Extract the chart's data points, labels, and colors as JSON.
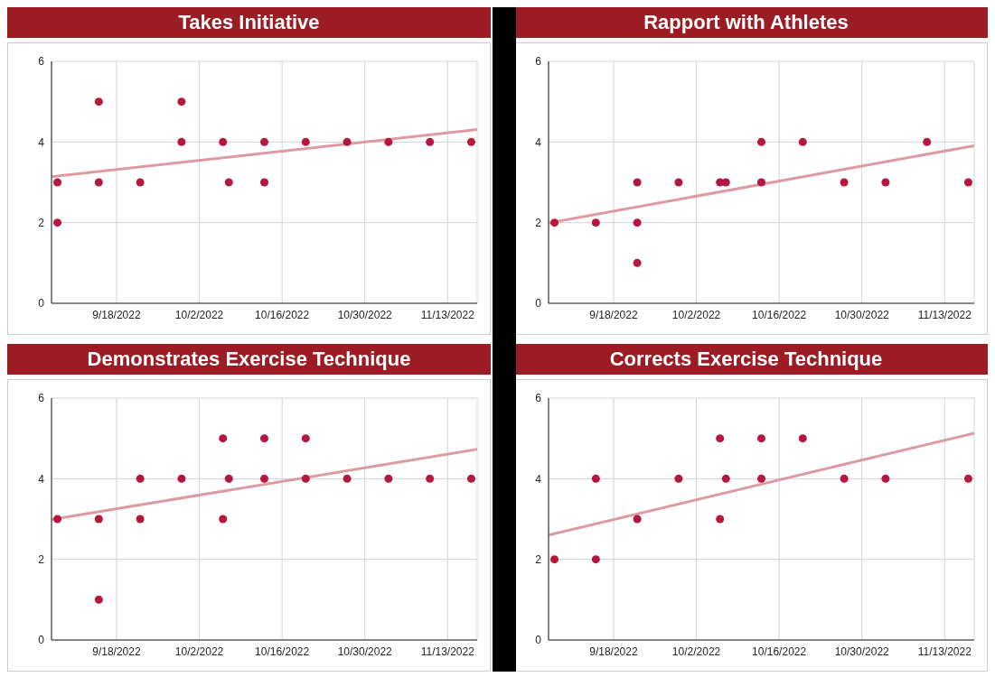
{
  "chart_data": [
    {
      "type": "scatter",
      "title": "Takes Initiative",
      "xlim": [
        "2022-09-07",
        "2022-11-18"
      ],
      "xticks": [
        {
          "value": "2022-09-18",
          "label": "9/18/2022"
        },
        {
          "value": "2022-10-02",
          "label": "10/2/2022"
        },
        {
          "value": "2022-10-16",
          "label": "10/16/2022"
        },
        {
          "value": "2022-10-30",
          "label": "10/30/2022"
        },
        {
          "value": "2022-11-13",
          "label": "11/13/2022"
        }
      ],
      "ylim": [
        0,
        6
      ],
      "yticks": [
        0,
        2,
        4,
        6
      ],
      "grid": true,
      "series": [
        {
          "color": "#b5173e",
          "marker": "circle",
          "x": [
            "2022-09-08",
            "2022-09-08",
            "2022-09-15",
            "2022-09-15",
            "2022-09-22",
            "2022-09-29",
            "2022-09-29",
            "2022-10-06",
            "2022-10-07",
            "2022-10-13",
            "2022-10-13",
            "2022-10-20",
            "2022-10-27",
            "2022-11-03",
            "2022-11-10",
            "2022-11-17"
          ],
          "values": [
            3,
            2,
            5,
            3,
            3,
            5,
            4,
            4,
            3,
            4,
            3,
            4,
            4,
            4,
            4,
            4
          ]
        },
        {
          "type": "line",
          "color": "#dc9aa2",
          "marker": "none",
          "x": [
            "2022-09-07",
            "2022-11-18"
          ],
          "values": [
            3.14,
            4.31
          ]
        }
      ]
    },
    {
      "type": "scatter",
      "title": "Rapport with Athletes",
      "xlim": [
        "2022-09-07",
        "2022-11-18"
      ],
      "xticks": [
        {
          "value": "2022-09-18",
          "label": "9/18/2022"
        },
        {
          "value": "2022-10-02",
          "label": "10/2/2022"
        },
        {
          "value": "2022-10-16",
          "label": "10/16/2022"
        },
        {
          "value": "2022-10-30",
          "label": "10/30/2022"
        },
        {
          "value": "2022-11-13",
          "label": "11/13/2022"
        }
      ],
      "ylim": [
        0,
        6
      ],
      "yticks": [
        0,
        2,
        4,
        6
      ],
      "grid": true,
      "series": [
        {
          "color": "#b5173e",
          "marker": "circle",
          "x": [
            "2022-09-08",
            "2022-09-15",
            "2022-09-22",
            "2022-09-22",
            "2022-09-22",
            "2022-09-29",
            "2022-10-06",
            "2022-10-07",
            "2022-10-13",
            "2022-10-13",
            "2022-10-20",
            "2022-10-27",
            "2022-11-03",
            "2022-11-10",
            "2022-11-17"
          ],
          "values": [
            2,
            2,
            3,
            2,
            1,
            3,
            3,
            3,
            4,
            3,
            4,
            3,
            3,
            4,
            3
          ]
        },
        {
          "type": "line",
          "color": "#dc9aa2",
          "marker": "none",
          "x": [
            "2022-09-07",
            "2022-11-18"
          ],
          "values": [
            1.99,
            3.91
          ]
        }
      ]
    },
    {
      "type": "scatter",
      "title": "Demonstrates Exercise Technique",
      "xlim": [
        "2022-09-07",
        "2022-11-18"
      ],
      "xticks": [
        {
          "value": "2022-09-18",
          "label": "9/18/2022"
        },
        {
          "value": "2022-10-02",
          "label": "10/2/2022"
        },
        {
          "value": "2022-10-16",
          "label": "10/16/2022"
        },
        {
          "value": "2022-10-30",
          "label": "10/30/2022"
        },
        {
          "value": "2022-11-13",
          "label": "11/13/2022"
        }
      ],
      "ylim": [
        0,
        6
      ],
      "yticks": [
        0,
        2,
        4,
        6
      ],
      "grid": true,
      "series": [
        {
          "color": "#b5173e",
          "marker": "circle",
          "x": [
            "2022-09-08",
            "2022-09-15",
            "2022-09-15",
            "2022-09-22",
            "2022-09-22",
            "2022-09-29",
            "2022-10-06",
            "2022-10-06",
            "2022-10-07",
            "2022-10-13",
            "2022-10-13",
            "2022-10-20",
            "2022-10-20",
            "2022-10-27",
            "2022-11-03",
            "2022-11-10",
            "2022-11-17"
          ],
          "values": [
            3,
            3,
            1,
            4,
            3,
            4,
            5,
            3,
            4,
            5,
            4,
            5,
            4,
            4,
            4,
            4,
            4
          ]
        },
        {
          "type": "line",
          "color": "#dc9aa2",
          "marker": "none",
          "x": [
            "2022-09-07",
            "2022-11-18"
          ],
          "values": [
            2.99,
            4.73
          ]
        }
      ]
    },
    {
      "type": "scatter",
      "title": "Corrects Exercise Technique",
      "xlim": [
        "2022-09-07",
        "2022-11-18"
      ],
      "xticks": [
        {
          "value": "2022-09-18",
          "label": "9/18/2022"
        },
        {
          "value": "2022-10-02",
          "label": "10/2/2022"
        },
        {
          "value": "2022-10-16",
          "label": "10/16/2022"
        },
        {
          "value": "2022-10-30",
          "label": "10/30/2022"
        },
        {
          "value": "2022-11-13",
          "label": "11/13/2022"
        }
      ],
      "ylim": [
        0,
        6
      ],
      "yticks": [
        0,
        2,
        4,
        6
      ],
      "grid": true,
      "series": [
        {
          "color": "#b5173e",
          "marker": "circle",
          "x": [
            "2022-09-08",
            "2022-09-15",
            "2022-09-15",
            "2022-09-22",
            "2022-09-29",
            "2022-10-06",
            "2022-10-06",
            "2022-10-07",
            "2022-10-13",
            "2022-10-13",
            "2022-10-20",
            "2022-10-27",
            "2022-11-03",
            "2022-11-17"
          ],
          "values": [
            2,
            4,
            2,
            3,
            4,
            5,
            3,
            4,
            5,
            4,
            5,
            4,
            4,
            4
          ]
        },
        {
          "type": "line",
          "color": "#dc9aa2",
          "marker": "none",
          "x": [
            "2022-09-07",
            "2022-11-18"
          ],
          "values": [
            2.6,
            5.13
          ]
        }
      ]
    }
  ]
}
